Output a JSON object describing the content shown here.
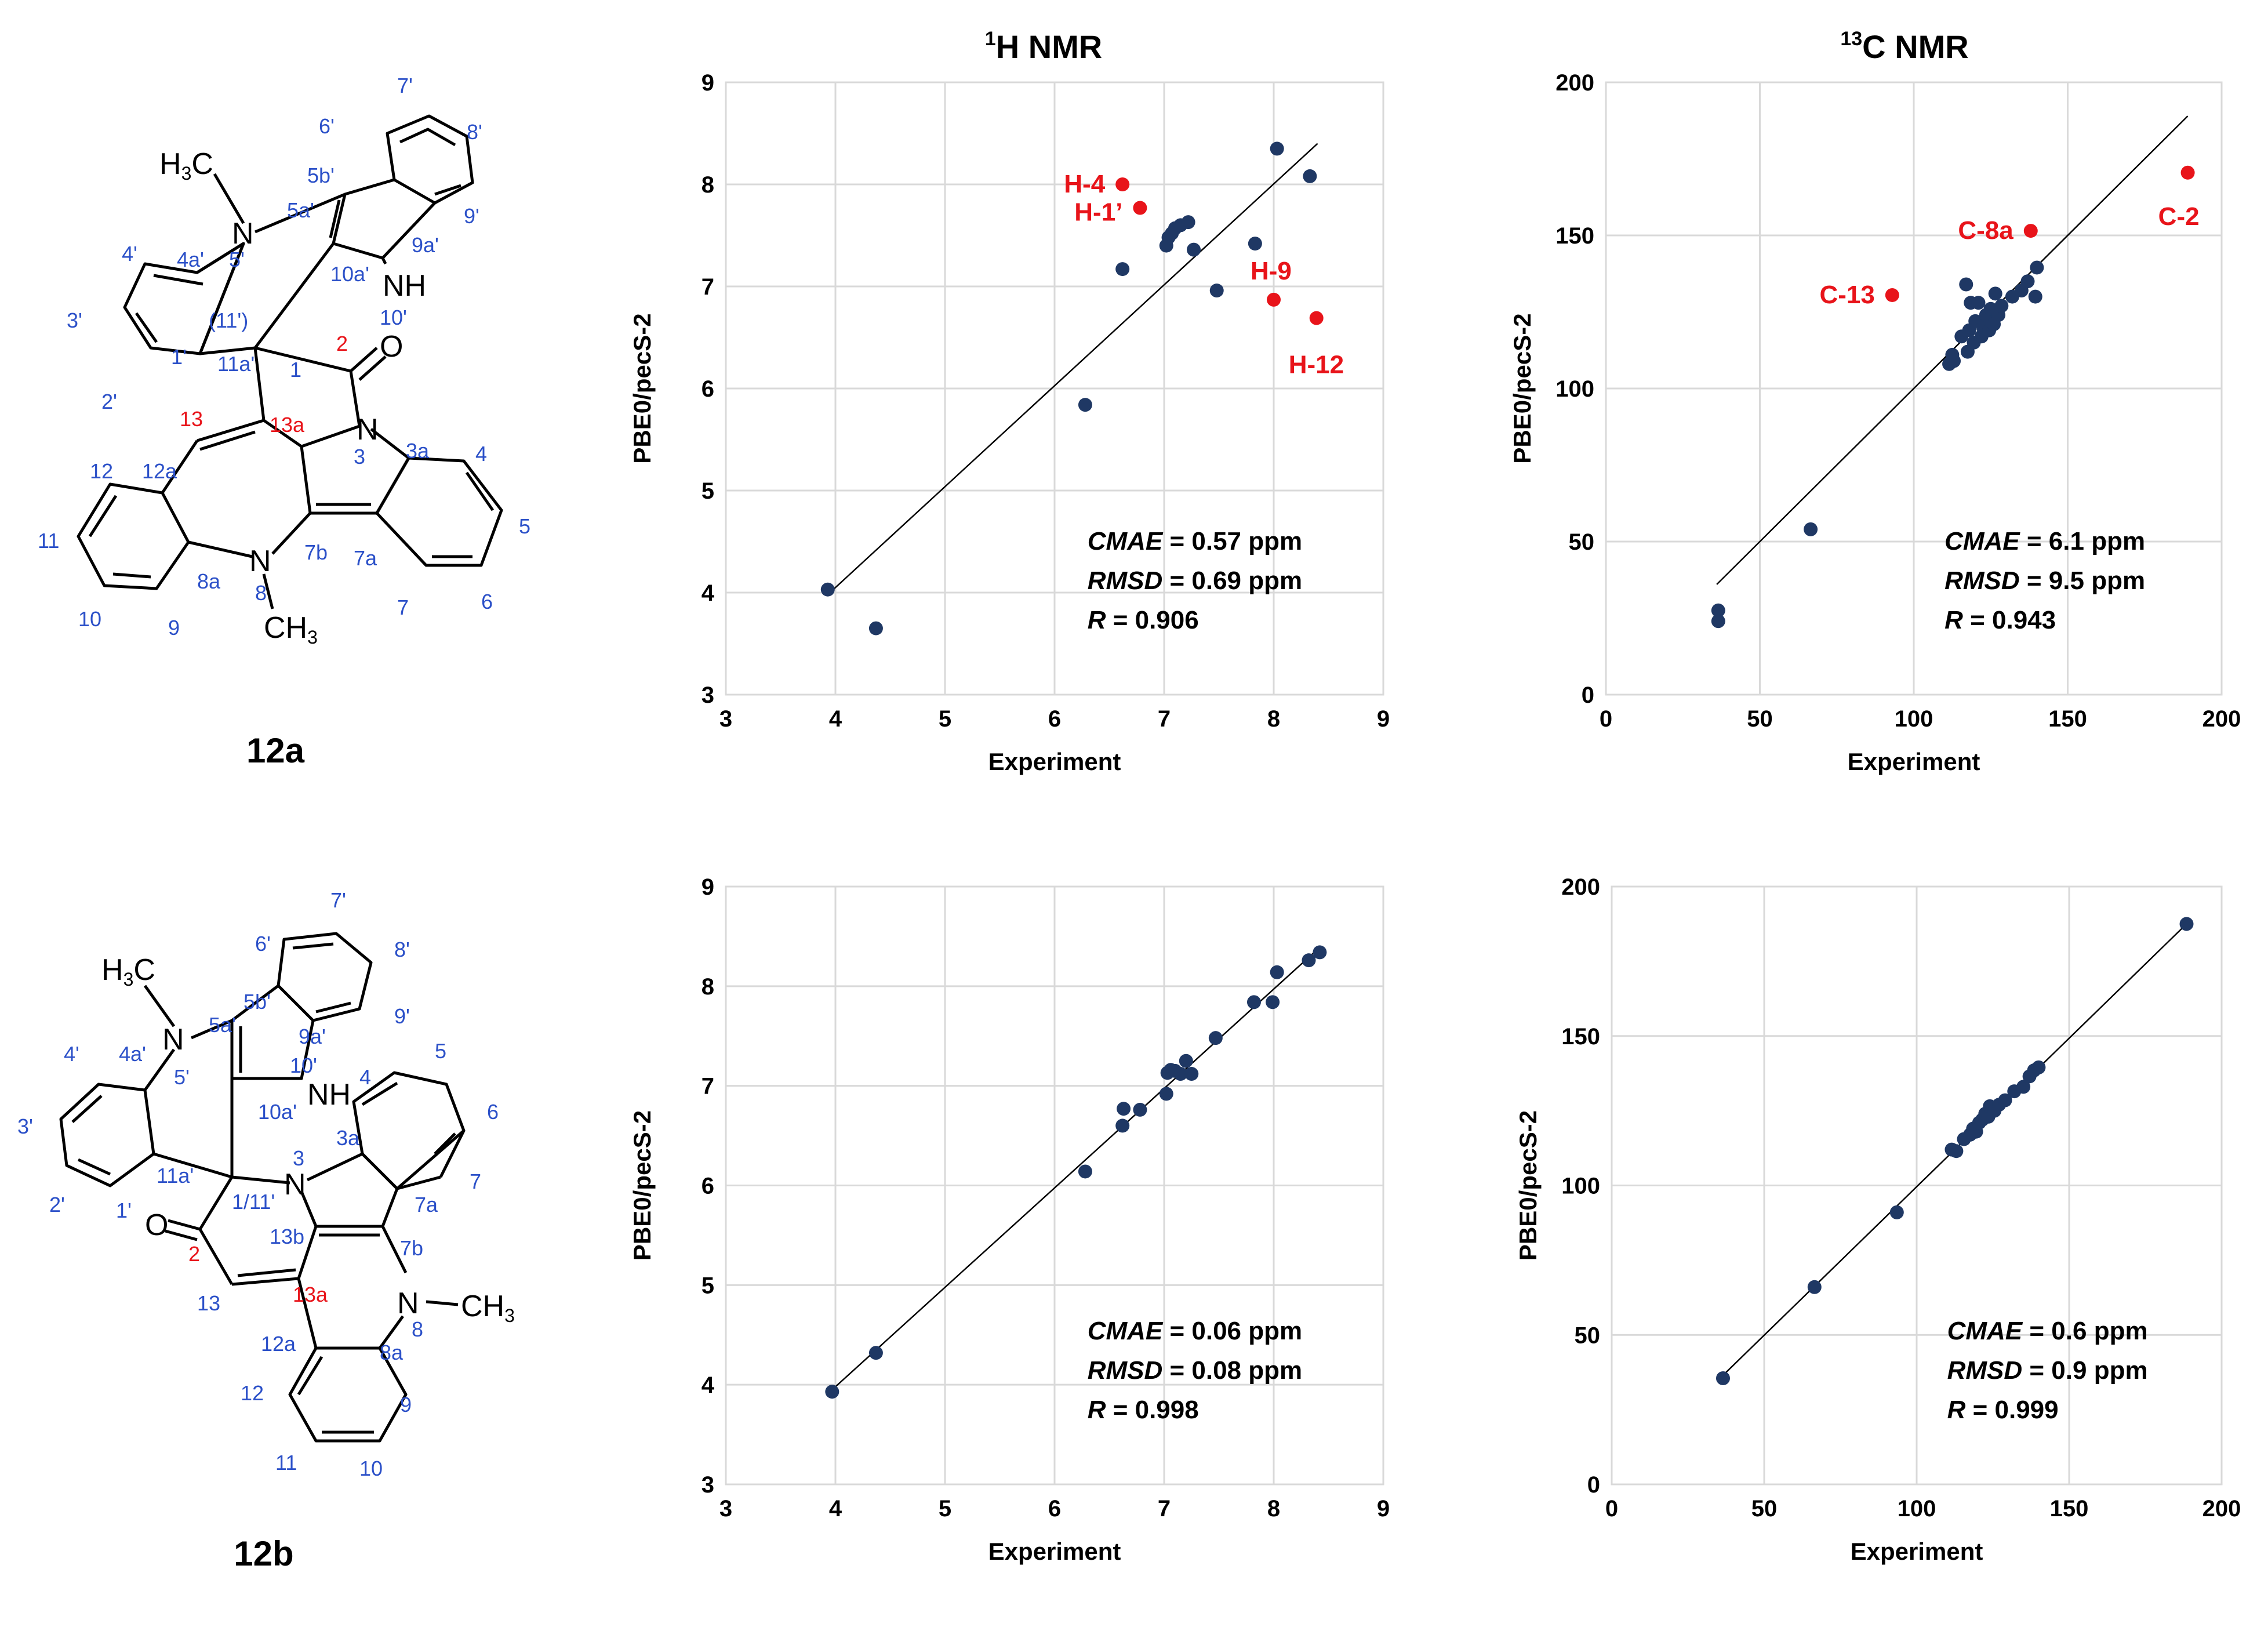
{
  "figure": {
    "column_titles": {
      "h_sup": "1",
      "h_main": "H NMR",
      "c_sup": "13",
      "c_main": "C NMR"
    },
    "compounds": [
      {
        "label": "12a",
        "methyl_top": "H3C",
        "methyl_bottom": "CH3",
        "atoms": {
          "N5p": "N",
          "N10p": "NH",
          "N3": "N",
          "N8": "N",
          "O": "O",
          "l_5p": "5'",
          "l_5ap": "5a'",
          "l_5bp": "5b'",
          "l_6p": "6'",
          "l_7p": "7'",
          "l_8p": "8'",
          "l_9p": "9'",
          "l_9ap": "9a'",
          "l_10ap": "10a'",
          "l_10p": "10'",
          "l_4ap": "4a'",
          "l_4p": "4'",
          "l_3p": "3'",
          "l_2p": "2'",
          "l_1p": "1'",
          "l_11ap": "11a'",
          "l_11p": "(11')",
          "l_1": "1",
          "l_2": "2",
          "l_13": "13",
          "l_13a": "13a",
          "l_3": "3",
          "l_3a": "3a",
          "l_4": "4",
          "l_5": "5",
          "l_6": "6",
          "l_7": "7",
          "l_7a": "7a",
          "l_7b": "7b",
          "l_8": "8",
          "l_8a": "8a",
          "l_9": "9",
          "l_10": "10",
          "l_11": "11",
          "l_12": "12",
          "l_12a": "12a"
        }
      },
      {
        "label": "12b",
        "methyl_top": "H3C",
        "methyl_bottom": "CH3",
        "atoms": {
          "N5p": "N",
          "N10p": "NH",
          "N3": "N",
          "N8": "N",
          "O": "O",
          "l_5p": "5'",
          "l_5ap": "5a'",
          "l_5bp": "5b'",
          "l_6p": "6'",
          "l_7p": "7'",
          "l_8p": "8'",
          "l_9p": "9'",
          "l_9ap": "9a'",
          "l_10ap": "10a'",
          "l_10p": "10'",
          "l_4ap": "4a'",
          "l_4p": "4'",
          "l_3p": "3'",
          "l_2p": "2'",
          "l_1p": "1'",
          "l_11ap": "11a'",
          "l_111p": "1/11'",
          "l_2": "2",
          "l_13": "13",
          "l_13a": "13a",
          "l_13b": "13b",
          "l_3": "3",
          "l_3a": "3a",
          "l_4": "4",
          "l_5": "5",
          "l_6": "6",
          "l_7": "7",
          "l_7a": "7a",
          "l_7b": "7b",
          "l_8": "8",
          "l_8a": "8a",
          "l_9": "9",
          "l_10": "10",
          "l_11": "11",
          "l_12": "12",
          "l_12a": "12a"
        }
      }
    ]
  },
  "chart_data": [
    {
      "id": "h12a",
      "type": "scatter",
      "title": "1H NMR",
      "xlabel": "Experiment",
      "ylabel": "PBE0/pecS-2",
      "xlim": [
        3,
        9
      ],
      "ylim": [
        3,
        9
      ],
      "xticks": [
        3,
        4,
        5,
        6,
        7,
        8,
        9
      ],
      "yticks": [
        3,
        4,
        5,
        6,
        7,
        8,
        9
      ],
      "grid": true,
      "point_color": "#1F3864",
      "outlier_color": "#E8141A",
      "line": [
        [
          3.95,
          4.0
        ],
        [
          8.4,
          8.4
        ]
      ],
      "points": [
        [
          3.93,
          4.03
        ],
        [
          4.37,
          3.65
        ],
        [
          6.28,
          5.84
        ],
        [
          6.62,
          7.17
        ],
        [
          7.02,
          7.4
        ],
        [
          7.04,
          7.48
        ],
        [
          7.07,
          7.52
        ],
        [
          7.1,
          7.57
        ],
        [
          7.15,
          7.6
        ],
        [
          7.22,
          7.63
        ],
        [
          7.27,
          7.36
        ],
        [
          7.48,
          6.96
        ],
        [
          7.83,
          7.42
        ],
        [
          8.03,
          8.35
        ],
        [
          8.33,
          8.08
        ]
      ],
      "outliers": [
        {
          "label": "H-4",
          "x": 6.62,
          "y": 8.0
        },
        {
          "label": "H-1’",
          "x": 6.78,
          "y": 7.77
        },
        {
          "label": "H-9",
          "x": 8.0,
          "y": 6.87
        },
        {
          "label": "H-12",
          "x": 8.39,
          "y": 6.69
        }
      ],
      "stats": {
        "cmae_key": "CMAE",
        "cmae_value": " = 0.57 ppm",
        "rmsd_key": "RMSD",
        "rmsd_value": " = 0.69 ppm",
        "r_key": "R",
        "r_value": " = 0.906"
      }
    },
    {
      "id": "c12a",
      "type": "scatter",
      "title": "13C NMR",
      "xlabel": "Experiment",
      "ylabel": "PBE0/pecS-2",
      "xlim": [
        0,
        200
      ],
      "ylim": [
        0,
        200
      ],
      "xticks": [
        0,
        50,
        100,
        150,
        200
      ],
      "yticks": [
        0,
        50,
        100,
        150,
        200
      ],
      "grid": true,
      "point_color": "#1F3864",
      "outlier_color": "#E8141A",
      "line": [
        [
          36,
          36
        ],
        [
          189,
          189
        ]
      ],
      "points": [
        [
          36.5,
          27.5
        ],
        [
          36.5,
          24.0
        ],
        [
          66.5,
          54.0
        ],
        [
          111.5,
          108.0
        ],
        [
          112.5,
          111.0
        ],
        [
          113.0,
          109.0
        ],
        [
          115.5,
          117.0
        ],
        [
          117.0,
          134.0
        ],
        [
          117.5,
          112.0
        ],
        [
          118.0,
          119.0
        ],
        [
          118.5,
          128.0
        ],
        [
          119.5,
          115.0
        ],
        [
          120.0,
          122.0
        ],
        [
          121.0,
          128.0
        ],
        [
          122.0,
          117.0
        ],
        [
          122.5,
          120.0
        ],
        [
          123.5,
          124.0
        ],
        [
          124.5,
          119.0
        ],
        [
          125.0,
          126.0
        ],
        [
          126.0,
          121.0
        ],
        [
          126.5,
          131.0
        ],
        [
          127.5,
          124.0
        ],
        [
          128.5,
          127.0
        ],
        [
          132.0,
          130.0
        ],
        [
          135.0,
          132.0
        ],
        [
          137.0,
          135.0
        ],
        [
          139.5,
          130.0
        ],
        [
          140.0,
          139.5
        ]
      ],
      "outliers": [
        {
          "label": "C-2",
          "x": 189.0,
          "y": 170.5
        },
        {
          "label": "C-8a",
          "x": 138.0,
          "y": 151.5
        },
        {
          "label": "C-13",
          "x": 93.0,
          "y": 130.5
        }
      ],
      "stats": {
        "cmae_key": "CMAE",
        "cmae_value": " = 6.1 ppm",
        "rmsd_key": "RMSD",
        "rmsd_value": " = 9.5 ppm",
        "r_key": "R",
        "r_value": " = 0.943"
      }
    },
    {
      "id": "h12b",
      "type": "scatter",
      "title": "",
      "xlabel": "Experiment",
      "ylabel": "PBE0/pecS-2",
      "xlim": [
        3,
        9
      ],
      "ylim": [
        3,
        9
      ],
      "xticks": [
        3,
        4,
        5,
        6,
        7,
        8,
        9
      ],
      "yticks": [
        3,
        4,
        5,
        6,
        7,
        8,
        9
      ],
      "grid": true,
      "point_color": "#1F3864",
      "outlier_color": "#E8141A",
      "line": [
        [
          3.95,
          3.93
        ],
        [
          8.42,
          8.39
        ]
      ],
      "points": [
        [
          3.97,
          3.93
        ],
        [
          4.37,
          4.32
        ],
        [
          6.28,
          6.14
        ],
        [
          6.62,
          6.6
        ],
        [
          6.63,
          6.77
        ],
        [
          6.78,
          6.76
        ],
        [
          7.02,
          6.92
        ],
        [
          7.03,
          7.13
        ],
        [
          7.06,
          7.16
        ],
        [
          7.1,
          7.15
        ],
        [
          7.15,
          7.12
        ],
        [
          7.2,
          7.25
        ],
        [
          7.25,
          7.12
        ],
        [
          7.47,
          7.48
        ],
        [
          7.82,
          7.84
        ],
        [
          7.99,
          7.84
        ],
        [
          8.03,
          8.14
        ],
        [
          8.32,
          8.26
        ],
        [
          8.42,
          8.34
        ]
      ],
      "outliers": [],
      "stats": {
        "cmae_key": "CMAE",
        "cmae_value": " = 0.06 ppm",
        "rmsd_key": "RMSD",
        "rmsd_value": " = 0.08 ppm",
        "r_key": "R",
        "r_value": " = 0.998"
      }
    },
    {
      "id": "c12b",
      "type": "scatter",
      "title": "",
      "xlabel": "Experiment",
      "ylabel": "PBE0/pecS-2",
      "xlim": [
        0,
        200
      ],
      "ylim": [
        0,
        200
      ],
      "xticks": [
        0,
        50,
        100,
        150,
        200
      ],
      "yticks": [
        0,
        50,
        100,
        150,
        200
      ],
      "grid": true,
      "point_color": "#1F3864",
      "outlier_color": "#E8141A",
      "line": [
        [
          36,
          36
        ],
        [
          189,
          188
        ]
      ],
      "points": [
        [
          36.5,
          35.5
        ],
        [
          66.5,
          66.0
        ],
        [
          93.5,
          91.0
        ],
        [
          111.5,
          112.0
        ],
        [
          113.0,
          111.5
        ],
        [
          115.5,
          115.5
        ],
        [
          117.5,
          117.0
        ],
        [
          118.5,
          119.0
        ],
        [
          119.5,
          118.0
        ],
        [
          120.5,
          121.0
        ],
        [
          121.5,
          122.0
        ],
        [
          122.5,
          124.0
        ],
        [
          123.5,
          123.0
        ],
        [
          124.0,
          126.5
        ],
        [
          125.5,
          125.0
        ],
        [
          127.0,
          127.0
        ],
        [
          129.0,
          128.5
        ],
        [
          132.0,
          131.5
        ],
        [
          135.0,
          133.0
        ],
        [
          137.0,
          136.5
        ],
        [
          138.5,
          138.5
        ],
        [
          140.0,
          139.5
        ],
        [
          188.5,
          187.5
        ]
      ],
      "outliers": [],
      "stats": {
        "cmae_key": "CMAE",
        "cmae_value": " = 0.6 ppm",
        "rmsd_key": "RMSD",
        "rmsd_value": " = 0.9 ppm",
        "r_key": "R",
        "r_value": " = 0.999"
      }
    }
  ]
}
